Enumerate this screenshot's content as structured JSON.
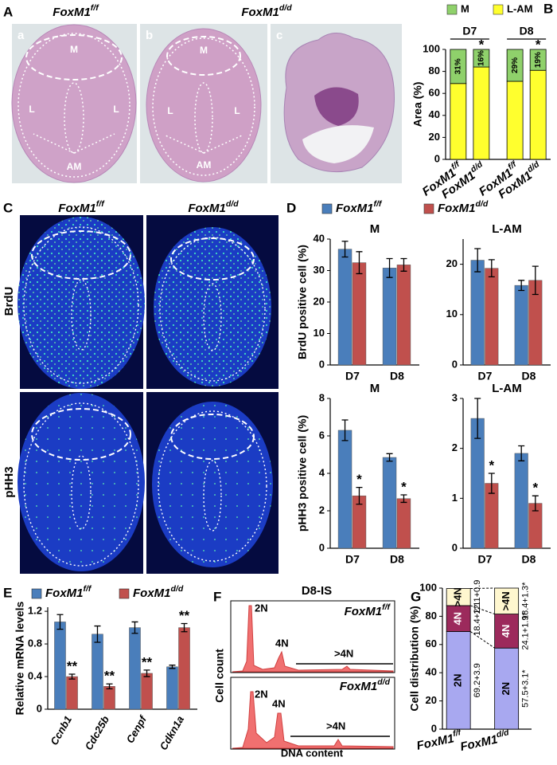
{
  "panel_letters": [
    "A",
    "B",
    "C",
    "D",
    "E",
    "F",
    "G"
  ],
  "panel_a": {
    "genotypes": [
      "FoxM1f/f",
      "FoxM1d/d"
    ],
    "images": [
      {
        "letter": "a",
        "regions": [
          "M",
          "L",
          "L",
          "AM"
        ]
      },
      {
        "letter": "b",
        "regions": [
          "M",
          "L",
          "L",
          "AM"
        ]
      },
      {
        "letter": "c"
      }
    ]
  },
  "panel_c": {
    "genotypes": [
      "FoxM1f/f",
      "FoxM1d/d"
    ],
    "stains": [
      "BrdU",
      "pHH3"
    ]
  },
  "panel_f": {
    "title": "D8-IS",
    "plots": [
      {
        "genotype": "FoxM1f/f",
        "peaks": [
          "2N",
          "4N",
          ">4N"
        ]
      },
      {
        "genotype": "FoxM1d/d",
        "peaks": [
          "2N",
          "4N",
          ">4N"
        ]
      }
    ],
    "y_label": "Cell count",
    "x_label": "DNA content"
  },
  "chart_data": [
    {
      "type": "stacked_bar",
      "y_label": "Area (%)",
      "categories": [
        "FoxM1f/f",
        "FoxM1d/d",
        "FoxM1f/f",
        "FoxM1d/d"
      ],
      "groups": [
        "D7",
        "D8"
      ],
      "series": [
        {
          "name": "L-AM",
          "color": "#ffff2e",
          "values": [
            69,
            84,
            71,
            81
          ]
        },
        {
          "name": "M",
          "color": "#8fd16b",
          "values": [
            31,
            16,
            29,
            19
          ],
          "value_labels": [
            "31%",
            "16%",
            "29%",
            "19%"
          ]
        }
      ],
      "annotations": [
        null,
        "*",
        null,
        "*"
      ],
      "ylim": [
        0,
        100
      ],
      "yticks": [
        0,
        20,
        40,
        60,
        80,
        100
      ],
      "legend": "top"
    },
    {
      "type": "bar",
      "title": "M",
      "y_label": "BrdU positive cell (%)",
      "categories": [
        "D7",
        "D8"
      ],
      "series": [
        {
          "name": "FoxM1f/f",
          "color": "#4a7ebb",
          "values": [
            36.8,
            30.8
          ],
          "errors": [
            2.5,
            3
          ]
        },
        {
          "name": "FoxM1d/d",
          "color": "#c0504d",
          "values": [
            32.5,
            31.8
          ],
          "errors": [
            3.5,
            2
          ]
        }
      ],
      "ylim": [
        0,
        40
      ],
      "yticks": [
        0,
        10,
        20,
        30,
        40
      ],
      "legend": "top"
    },
    {
      "type": "bar",
      "title": "L-AM",
      "categories": [
        "D7",
        "D8"
      ],
      "series": [
        {
          "color": "#4a7ebb",
          "values": [
            20.8,
            15.8
          ],
          "errors": [
            2.3,
            1
          ]
        },
        {
          "color": "#c0504d",
          "values": [
            19.2,
            16.8
          ],
          "errors": [
            1.7,
            2.8
          ]
        }
      ],
      "ylim": [
        0,
        25
      ],
      "yticks": [
        0,
        10,
        20
      ]
    },
    {
      "type": "bar",
      "title": "M",
      "y_label": "pHH3 positive cell (%)",
      "categories": [
        "D7",
        "D8"
      ],
      "series": [
        {
          "color": "#4a7ebb",
          "values": [
            6.3,
            4.85
          ],
          "errors": [
            0.55,
            0.2
          ]
        },
        {
          "color": "#c0504d",
          "values": [
            2.8,
            2.65
          ],
          "errors": [
            0.45,
            0.2
          ],
          "annotations": [
            "*",
            "*"
          ]
        }
      ],
      "ylim": [
        0,
        8
      ],
      "yticks": [
        0,
        2,
        4,
        6,
        8
      ]
    },
    {
      "type": "bar",
      "title": "L-AM",
      "categories": [
        "D7",
        "D8"
      ],
      "series": [
        {
          "color": "#4a7ebb",
          "values": [
            2.6,
            1.9
          ],
          "errors": [
            0.4,
            0.15
          ]
        },
        {
          "color": "#c0504d",
          "values": [
            1.3,
            0.9
          ],
          "errors": [
            0.2,
            0.15
          ],
          "annotations": [
            "*",
            "*"
          ]
        }
      ],
      "ylim": [
        0,
        3
      ],
      "yticks": [
        0,
        1,
        2,
        3
      ]
    },
    {
      "type": "bar",
      "y_label": "Relative mRNA levels",
      "categories": [
        "Ccnb1",
        "Cdc25b",
        "Cenpf",
        "Cdkn1a"
      ],
      "series": [
        {
          "name": "FoxM1f/f",
          "color": "#4a7ebb",
          "values": [
            1.07,
            0.92,
            1.0,
            0.52
          ],
          "errors": [
            0.09,
            0.1,
            0.07,
            0.02
          ]
        },
        {
          "name": "FoxM1d/d",
          "color": "#c0504d",
          "values": [
            0.4,
            0.28,
            0.44,
            1.0
          ],
          "errors": [
            0.03,
            0.03,
            0.04,
            0.05
          ],
          "annotations": [
            "**",
            "**",
            "**",
            "**"
          ]
        }
      ],
      "ylim": [
        0,
        1.25
      ],
      "yticks": [
        0,
        0.4,
        0.8,
        1.2
      ],
      "legend": "top"
    },
    {
      "type": "stacked_bar",
      "y_label": "Cell distribution (%)",
      "categories": [
        "FoxM1f/f",
        "FoxM1d/d"
      ],
      "series": [
        {
          "name": "2N",
          "color": "#a8a8f0",
          "values": [
            69.2,
            57.5
          ],
          "value_labels": [
            "69.2+3.9",
            "57.5+3.1*"
          ]
        },
        {
          "name": "4N",
          "color": "#9c2a5c",
          "values": [
            18.4,
            24.1
          ],
          "value_labels": [
            "18.4+2.1",
            "24.1+1.9*"
          ]
        },
        {
          "name": ">4N",
          "color": "#fff7cf",
          "values": [
            12.1,
            18.4
          ],
          "value_labels": [
            "12.1+0.9",
            "18.4+1.3*"
          ]
        }
      ],
      "ylim": [
        0,
        100
      ],
      "yticks": [
        0,
        20,
        40,
        60,
        80,
        100
      ],
      "segment_names": true
    }
  ]
}
